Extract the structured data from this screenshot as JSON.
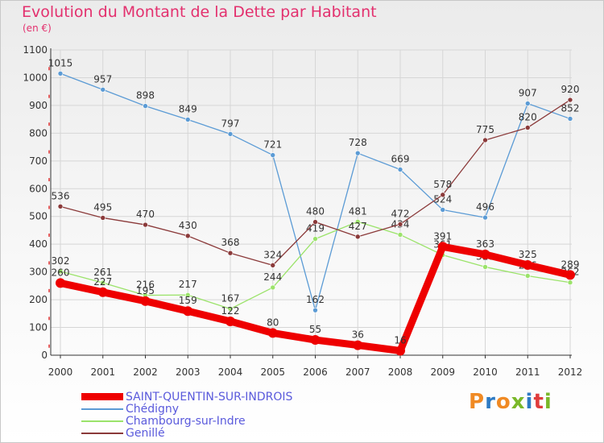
{
  "title": "Evolution du Montant de la Dette par Habitant",
  "unit": "(en €)",
  "logo_text": "Proxiti",
  "colors": {
    "title": "#e3306e",
    "grid": "#d6d6d6",
    "axis": "#333333",
    "legend_text": "#5a5adc",
    "logo": [
      "#f08a24",
      "#2e7bc4",
      "#f08a24",
      "#7ab829",
      "#2e7bc4",
      "#e03c3c",
      "#7ab829"
    ]
  },
  "chart_data": {
    "type": "line",
    "title": "Evolution du Montant de la Dette par Habitant",
    "ylabel": "(en €)",
    "xlabel": "",
    "x": [
      "2000",
      "2001",
      "2002",
      "2003",
      "2004",
      "2005",
      "2006",
      "2007",
      "2008",
      "2009",
      "2010",
      "2011",
      "2012"
    ],
    "ylim": [
      0,
      1100
    ],
    "yticks": [
      "0",
      "100",
      "200",
      "300",
      "400",
      "500",
      "600",
      "700",
      "800",
      "900",
      "1000",
      "1100"
    ],
    "grid": true,
    "legend_position": "bottom-left",
    "series": [
      {
        "name": "Chédigny",
        "color": "#5b9bd5",
        "values": [
          1015,
          957,
          898,
          849,
          797,
          721,
          162,
          728,
          669,
          524,
          496,
          907,
          852
        ]
      },
      {
        "name": "Chambourg-sur-Indre",
        "color": "#9be36a",
        "values": [
          302,
          261,
          216,
          217,
          167,
          244,
          419,
          481,
          434,
          361,
          318,
          286,
          262
        ]
      },
      {
        "name": "Genillé",
        "color": "#8b3a3a",
        "values": [
          536,
          495,
          470,
          430,
          368,
          324,
          480,
          427,
          472,
          578,
          775,
          820,
          920
        ]
      },
      {
        "name": "SAINT-QUENTIN-SUR-INDROIS",
        "color": "#ee0000",
        "values": [
          260,
          227,
          195,
          159,
          122,
          80,
          55,
          36,
          16,
          391,
          363,
          325,
          289
        ]
      }
    ],
    "label_values": {
      "Chédigny": [
        "1015",
        "957",
        "898",
        "849",
        "797",
        "721",
        "162",
        "728",
        "669",
        "524",
        "496",
        "907",
        "852"
      ],
      "Chambourg-sur-Indre": [
        "302",
        "261",
        "216",
        "217",
        "167",
        "244",
        "419",
        "481",
        "434",
        "361",
        "318",
        "286",
        "262"
      ],
      "Genillé": [
        "536",
        "495",
        "470",
        "430",
        "368",
        "324",
        "480",
        "427",
        "472",
        "578",
        "775",
        "820",
        "920"
      ],
      "SAINT-QUENTIN-SUR-INDROIS": [
        "260",
        "227",
        "195",
        "159",
        "122",
        "80",
        "55",
        "36",
        "16",
        "391",
        "363",
        "325",
        "289"
      ]
    }
  },
  "legend": [
    {
      "name": "SAINT-QUENTIN-SUR-INDROIS",
      "color": "#ee0000",
      "thick": true
    },
    {
      "name": "Chédigny",
      "color": "#5b9bd5",
      "thick": false
    },
    {
      "name": "Chambourg-sur-Indre",
      "color": "#9be36a",
      "thick": false
    },
    {
      "name": "Genillé",
      "color": "#8b3a3a",
      "thick": false
    }
  ]
}
